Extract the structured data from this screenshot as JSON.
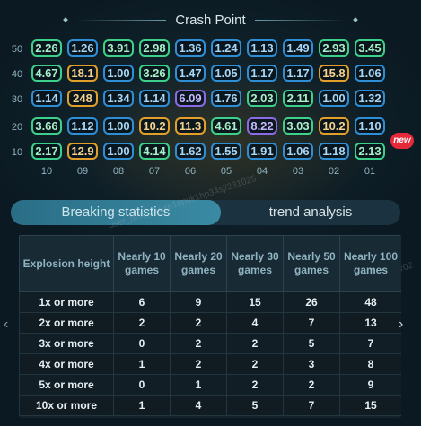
{
  "title": "Crash Point",
  "row_labels": [
    "50",
    "40",
    "30",
    "20",
    "10"
  ],
  "col_labels": [
    "10",
    "09",
    "08",
    "07",
    "06",
    "05",
    "04",
    "03",
    "02",
    "01"
  ],
  "grid": [
    [
      {
        "v": "2.26",
        "c": "green"
      },
      {
        "v": "1.26",
        "c": "blue"
      },
      {
        "v": "3.91",
        "c": "green"
      },
      {
        "v": "2.98",
        "c": "green"
      },
      {
        "v": "1.36",
        "c": "blue"
      },
      {
        "v": "1.24",
        "c": "blue"
      },
      {
        "v": "1.13",
        "c": "blue"
      },
      {
        "v": "1.49",
        "c": "blue"
      },
      {
        "v": "2.93",
        "c": "green"
      },
      {
        "v": "3.45",
        "c": "green"
      }
    ],
    [
      {
        "v": "4.67",
        "c": "green"
      },
      {
        "v": "18.1",
        "c": "gold"
      },
      {
        "v": "1.00",
        "c": "blue"
      },
      {
        "v": "3.26",
        "c": "green"
      },
      {
        "v": "1.47",
        "c": "blue"
      },
      {
        "v": "1.05",
        "c": "blue"
      },
      {
        "v": "1.17",
        "c": "blue"
      },
      {
        "v": "1.17",
        "c": "blue"
      },
      {
        "v": "15.8",
        "c": "gold"
      },
      {
        "v": "1.06",
        "c": "blue"
      }
    ],
    [
      {
        "v": "1.14",
        "c": "blue"
      },
      {
        "v": "248",
        "c": "gold"
      },
      {
        "v": "1.34",
        "c": "blue"
      },
      {
        "v": "1.14",
        "c": "blue"
      },
      {
        "v": "6.09",
        "c": "purple"
      },
      {
        "v": "1.76",
        "c": "blue"
      },
      {
        "v": "2.03",
        "c": "green"
      },
      {
        "v": "2.11",
        "c": "green"
      },
      {
        "v": "1.00",
        "c": "blue"
      },
      {
        "v": "1.32",
        "c": "blue"
      }
    ],
    [
      {
        "v": "3.66",
        "c": "green"
      },
      {
        "v": "1.12",
        "c": "blue"
      },
      {
        "v": "1.00",
        "c": "blue"
      },
      {
        "v": "10.2",
        "c": "gold"
      },
      {
        "v": "11.3",
        "c": "gold"
      },
      {
        "v": "4.61",
        "c": "green"
      },
      {
        "v": "8.22",
        "c": "purple"
      },
      {
        "v": "3.03",
        "c": "green"
      },
      {
        "v": "10.2",
        "c": "gold"
      },
      {
        "v": "1.10",
        "c": "blue"
      }
    ],
    [
      {
        "v": "2.17",
        "c": "green"
      },
      {
        "v": "12.9",
        "c": "gold"
      },
      {
        "v": "1.00",
        "c": "blue"
      },
      {
        "v": "4.14",
        "c": "green"
      },
      {
        "v": "1.62",
        "c": "blue"
      },
      {
        "v": "1.55",
        "c": "blue"
      },
      {
        "v": "1.91",
        "c": "blue"
      },
      {
        "v": "1.06",
        "c": "blue"
      },
      {
        "v": "1.18",
        "c": "blue"
      },
      {
        "v": "2.13",
        "c": "green"
      }
    ]
  ],
  "new_badge": "new",
  "tabs": {
    "active": "Breaking statistics",
    "inactive": "trend analysis"
  },
  "stats": {
    "headers": [
      "Explosion height",
      "Nearly 10 games",
      "Nearly 20 games",
      "Nearly 30 games",
      "Nearly 50 games",
      "Nearly 100 games"
    ],
    "rows": [
      [
        "1x or more",
        "6",
        "9",
        "15",
        "26",
        "48"
      ],
      [
        "2x or more",
        "2",
        "2",
        "4",
        "7",
        "13"
      ],
      [
        "3x or more",
        "0",
        "2",
        "2",
        "5",
        "7"
      ],
      [
        "4x or more",
        "1",
        "2",
        "2",
        "3",
        "8"
      ],
      [
        "5x or more",
        "0",
        "1",
        "2",
        "2",
        "9"
      ],
      [
        "10x or more",
        "1",
        "4",
        "5",
        "7",
        "15"
      ]
    ]
  },
  "watermark": "user_test_21uxe1dpyk1hp34sj/231025",
  "watermark2": "user02",
  "nav": {
    "left": "‹",
    "right": "›"
  },
  "colors": {
    "green": "#3dd08a",
    "blue": "#2e8fd6",
    "gold": "#e2a02a",
    "purple": "#8a6ae6"
  }
}
